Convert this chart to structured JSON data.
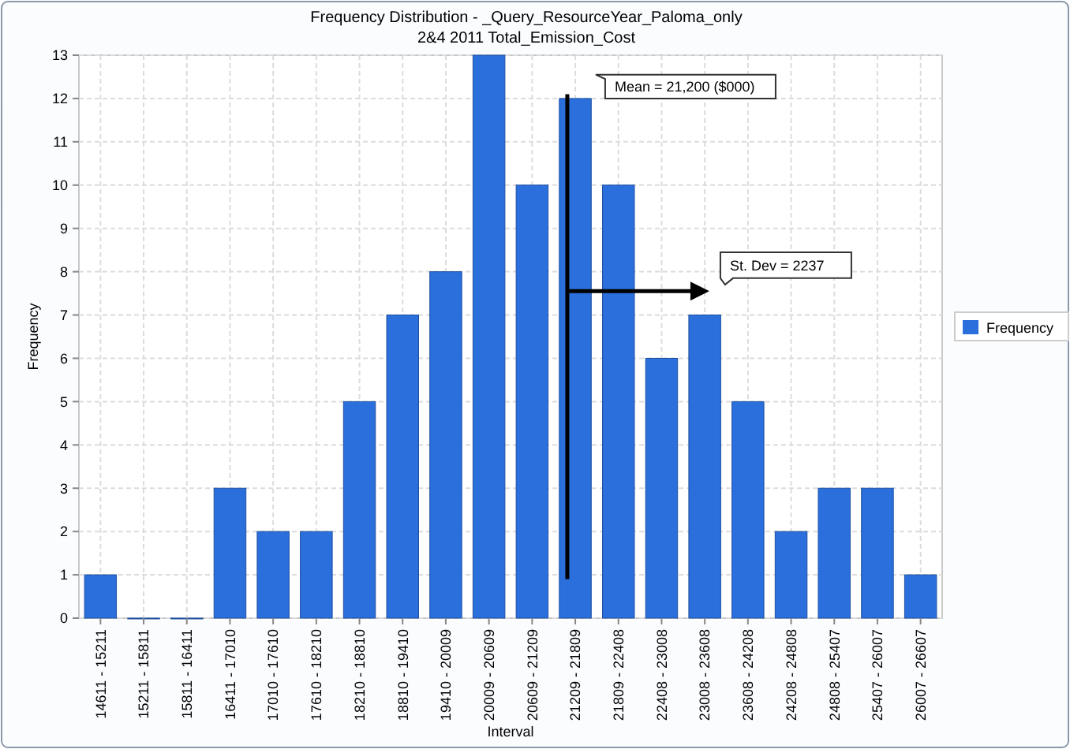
{
  "chart_data": {
    "type": "bar",
    "title": "Frequency Distribution - _Query_ResourceYear_Paloma_only",
    "subtitle": "2&4 2011 Total_Emission_Cost",
    "xlabel": "Interval",
    "ylabel": "Frequency",
    "categories": [
      "14611 - 15211",
      "15211 - 15811",
      "15811 - 16411",
      "16411 - 17010",
      "17010 - 17610",
      "17610 - 18210",
      "18210 - 18810",
      "18810 - 19410",
      "19410 - 20009",
      "20009 - 20609",
      "20609 - 21209",
      "21209 - 21809",
      "21809 - 22408",
      "22408 - 23008",
      "23008 - 23608",
      "23608 - 24208",
      "24208 - 24808",
      "24808 - 25407",
      "25407 - 26007",
      "26007 - 26607"
    ],
    "series": [
      {
        "name": "Frequency",
        "color": "#2a6fdc",
        "values": [
          1,
          0,
          0,
          3,
          2,
          2,
          5,
          7,
          8,
          13,
          10,
          12,
          10,
          6,
          7,
          5,
          2,
          3,
          3,
          1
        ]
      }
    ],
    "ylim": [
      0,
      13
    ],
    "yticks": [
      0,
      1,
      2,
      3,
      4,
      5,
      6,
      7,
      8,
      9,
      10,
      11,
      12,
      13
    ],
    "grid": true,
    "legend": "right",
    "ref_lines": [
      {
        "axis": "x",
        "value": "21209 - 21809",
        "label": "Mean = 21,200 ($000)",
        "color": "#000000"
      }
    ],
    "annotations": [
      "St. Dev = 2237"
    ]
  }
}
